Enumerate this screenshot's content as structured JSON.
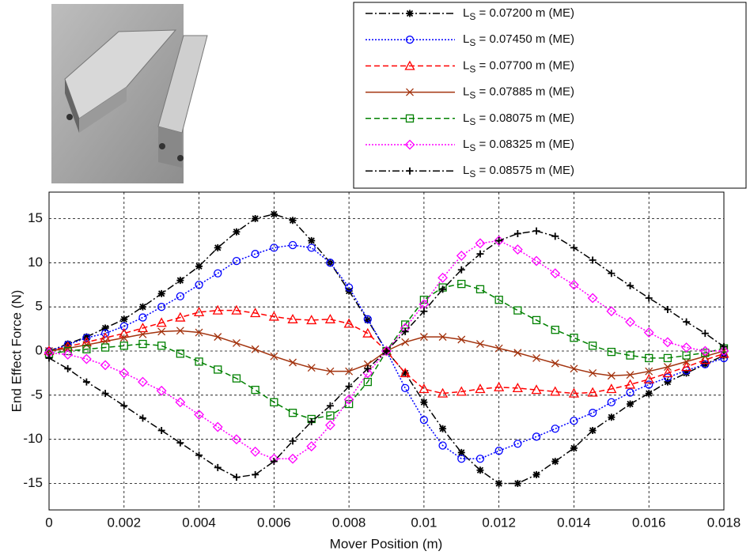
{
  "chart_data": {
    "type": "line",
    "xlabel": "Mover Position (m)",
    "ylabel": "End Effect Force (N)",
    "xlim": [
      0,
      0.018
    ],
    "ylim": [
      -18,
      18
    ],
    "xticks": [
      0,
      0.002,
      0.004,
      0.006,
      0.008,
      0.01,
      0.012,
      0.014,
      0.016,
      0.018
    ],
    "yticks": [
      -15,
      -10,
      -5,
      0,
      5,
      10,
      15
    ],
    "grid": true,
    "x": [
      0,
      0.0005,
      0.001,
      0.0015,
      0.002,
      0.0025,
      0.003,
      0.0035,
      0.004,
      0.0045,
      0.005,
      0.0055,
      0.006,
      0.0065,
      0.007,
      0.0075,
      0.008,
      0.0085,
      0.009,
      0.0095,
      0.01,
      0.0105,
      0.011,
      0.0115,
      0.012,
      0.0125,
      0.013,
      0.0135,
      0.014,
      0.0145,
      0.015,
      0.0155,
      0.016,
      0.0165,
      0.017,
      0.0175,
      0.018
    ],
    "series": [
      {
        "name": "LS = 0.07200 m (ME)",
        "color": "#000000",
        "marker": "asterisk",
        "dash": "dashdot",
        "values": [
          0,
          0.8,
          1.6,
          2.6,
          3.6,
          5,
          6.5,
          8,
          9.6,
          11.7,
          13.5,
          15,
          15.5,
          14.8,
          12.5,
          10,
          6.8,
          3.5,
          0,
          -2.5,
          -5.8,
          -8.8,
          -11.5,
          -13.5,
          -15,
          -15,
          -14,
          -12.5,
          -11,
          -9,
          -7.5,
          -6,
          -4.8,
          -3.5,
          -2.5,
          -1.5,
          -0.5
        ]
      },
      {
        "name": "LS = 0.07450 m (ME)",
        "color": "#0000ff",
        "marker": "circle",
        "dash": "dotted",
        "values": [
          0,
          0.7,
          1.5,
          2,
          2.8,
          3.8,
          5,
          6.2,
          7.5,
          8.8,
          10.2,
          11,
          11.7,
          12,
          11.7,
          10,
          7.2,
          3.6,
          0,
          -4.2,
          -7.8,
          -10.7,
          -12.2,
          -12.2,
          -11.3,
          -10.5,
          -9.7,
          -8.8,
          -7.9,
          -7,
          -5.8,
          -4.7,
          -3.8,
          -3,
          -2.2,
          -1.5,
          -0.8
        ]
      },
      {
        "name": "LS = 0.07700 m (ME)",
        "color": "#ff0000",
        "marker": "triangle",
        "dash": "dashed",
        "values": [
          0,
          0.5,
          1,
          1.5,
          2,
          2.6,
          3.2,
          3.8,
          4.4,
          4.6,
          4.6,
          4.3,
          3.9,
          3.6,
          3.5,
          3.6,
          3.1,
          2,
          0,
          -2.5,
          -4.3,
          -4.8,
          -4.6,
          -4.3,
          -4.1,
          -4.2,
          -4.4,
          -4.6,
          -4.8,
          -4.7,
          -4.3,
          -3.8,
          -3.2,
          -2.5,
          -1.8,
          -1,
          -0.3
        ]
      },
      {
        "name": "LS = 0.07885 m (ME)",
        "color": "#a3330e",
        "marker": "x",
        "dash": "solid",
        "values": [
          0,
          0.3,
          0.7,
          1.1,
          1.5,
          1.9,
          2.2,
          2.3,
          2.1,
          1.6,
          0.9,
          0.2,
          -0.6,
          -1.3,
          -1.9,
          -2.3,
          -2.3,
          -1.5,
          0,
          1,
          1.6,
          1.6,
          1.3,
          0.8,
          0.3,
          -0.2,
          -0.8,
          -1.4,
          -2,
          -2.5,
          -2.8,
          -2.7,
          -2.3,
          -1.8,
          -1.2,
          -0.6,
          0
        ]
      },
      {
        "name": "LS = 0.08075 m (ME)",
        "color": "#008000",
        "marker": "square",
        "dash": "dashed",
        "values": [
          -0.3,
          0,
          0.2,
          0.4,
          0.6,
          0.8,
          0.6,
          -0.3,
          -1.2,
          -2.1,
          -3.1,
          -4.4,
          -5.8,
          -7,
          -7.7,
          -7.3,
          -6,
          -3.5,
          0,
          3,
          5.8,
          7.2,
          7.6,
          7,
          5.8,
          4.6,
          3.5,
          2.4,
          1.5,
          0.6,
          -0.1,
          -0.5,
          -0.8,
          -0.8,
          -0.5,
          -0.2,
          0.3
        ]
      },
      {
        "name": "LS = 0.08325 m (ME)",
        "color": "#ff00ff",
        "marker": "diamond",
        "dash": "dotted",
        "values": [
          -0.2,
          -0.4,
          -0.9,
          -1.6,
          -2.5,
          -3.5,
          -4.5,
          -5.8,
          -7.2,
          -8.6,
          -10,
          -11.4,
          -12.2,
          -12.2,
          -10.8,
          -8.4,
          -5.5,
          -2.5,
          0,
          2.6,
          5.3,
          8.3,
          10.8,
          12.2,
          12.5,
          11.5,
          10.2,
          8.8,
          7.5,
          6,
          4.5,
          3.3,
          2.1,
          1,
          0.4,
          0,
          0
        ]
      },
      {
        "name": "LS = 0.08575 m (ME)",
        "color": "#000000",
        "marker": "plus",
        "dash": "dashdot",
        "values": [
          -0.8,
          -2,
          -3.5,
          -4.8,
          -6.2,
          -7.6,
          -9,
          -10.4,
          -11.8,
          -13.2,
          -14.3,
          -14,
          -12.5,
          -10.2,
          -8,
          -6.2,
          -4,
          -2,
          0,
          2.2,
          4.5,
          7,
          9.2,
          11,
          12.5,
          13.3,
          13.6,
          13,
          11.7,
          10.3,
          8.8,
          7.4,
          6,
          4.7,
          3.3,
          2,
          0.5
        ]
      }
    ]
  }
}
